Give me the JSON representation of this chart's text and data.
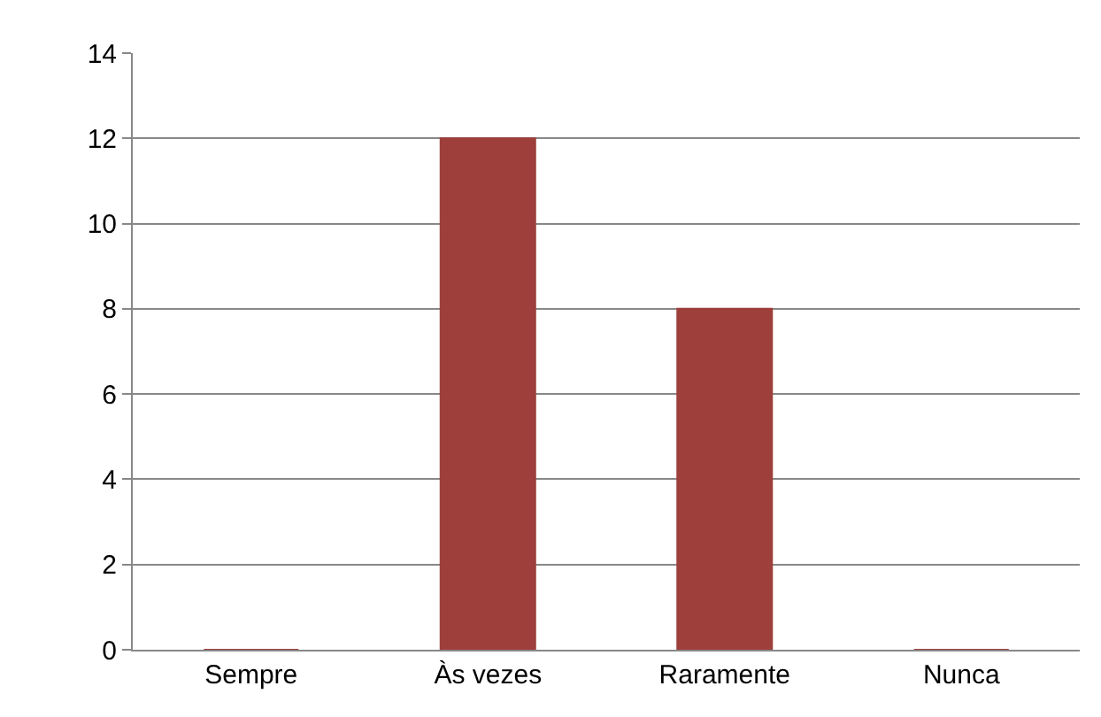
{
  "chart_data": {
    "type": "bar",
    "categories": [
      "Sempre",
      "Às vezes",
      "Raramente",
      "Nunca"
    ],
    "values": [
      0,
      12,
      8,
      0
    ],
    "color": "#9e3f3c",
    "ylim": [
      0,
      14
    ],
    "yticks": [
      0,
      2,
      4,
      6,
      8,
      10,
      12,
      14
    ],
    "grid": "y",
    "legend": false
  }
}
